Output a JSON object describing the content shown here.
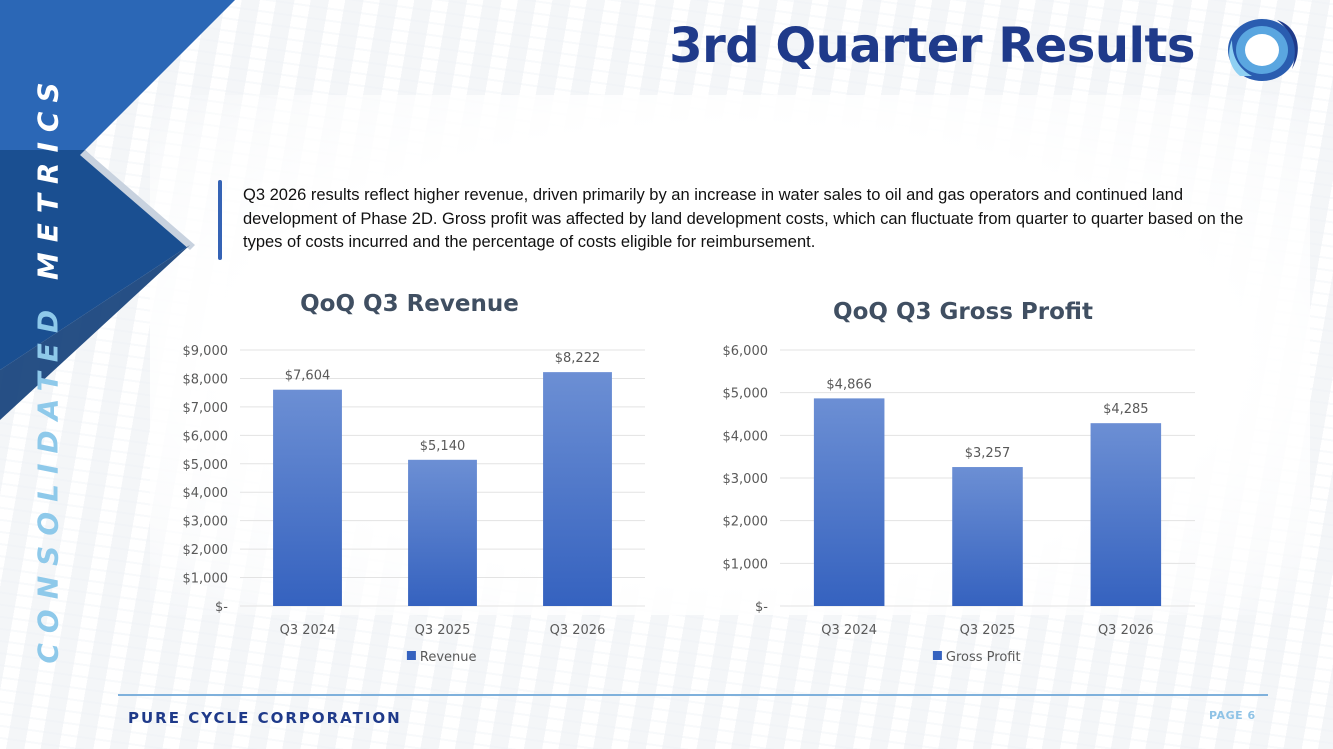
{
  "slide": {
    "title": "3rd Quarter Results",
    "vertical_label_part1": "CONSOLIDATED ",
    "vertical_label_part2": "METRICS",
    "summary": "Q3 2026 results reflect higher revenue, driven primarily by an increase in water sales to oil and gas operators and continued land development of Phase 2D. Gross profit was affected by land development costs, which can fluctuate from quarter to quarter based on the types of costs incurred and the percentage of costs eligible for reimbursement.",
    "company": "PURE CYCLE CORPORATION",
    "page": "PAGE 6"
  },
  "colors": {
    "bar_top": "#6c8fd4",
    "bar_bottom": "#3562bf",
    "grid": "#e3e3e3",
    "tick_text": "#595959",
    "title_blue": "#1f3a8a",
    "accent_light": "#8fc3e6"
  },
  "chart_data": [
    {
      "type": "bar",
      "title": "QoQ Q3 Revenue",
      "categories": [
        "Q3 2024",
        "Q3 2025",
        "Q3 2026"
      ],
      "series": [
        {
          "name": "Revenue",
          "values": [
            7604,
            5140,
            8222
          ]
        }
      ],
      "data_labels": [
        "$7,604",
        "$5,140",
        "$8,222"
      ],
      "ylim": [
        0,
        9000
      ],
      "yticks": [
        0,
        1000,
        2000,
        3000,
        4000,
        5000,
        6000,
        7000,
        8000,
        9000
      ],
      "ytick_labels": [
        "$-",
        "$1,000",
        "$2,000",
        "$3,000",
        "$4,000",
        "$5,000",
        "$6,000",
        "$7,000",
        "$8,000",
        "$9,000"
      ],
      "legend": "bottom",
      "grid": true
    },
    {
      "type": "bar",
      "title": "QoQ Q3 Gross Profit",
      "categories": [
        "Q3 2024",
        "Q3 2025",
        "Q3 2026"
      ],
      "series": [
        {
          "name": "Gross Profit",
          "values": [
            4866,
            3257,
            4285
          ]
        }
      ],
      "data_labels": [
        "$4,866",
        "$3,257",
        "$4,285"
      ],
      "ylim": [
        0,
        6000
      ],
      "yticks": [
        0,
        1000,
        2000,
        3000,
        4000,
        5000,
        6000
      ],
      "ytick_labels": [
        "$-",
        "$1,000",
        "$2,000",
        "$3,000",
        "$4,000",
        "$5,000",
        "$6,000"
      ],
      "legend": "bottom",
      "grid": true
    }
  ]
}
